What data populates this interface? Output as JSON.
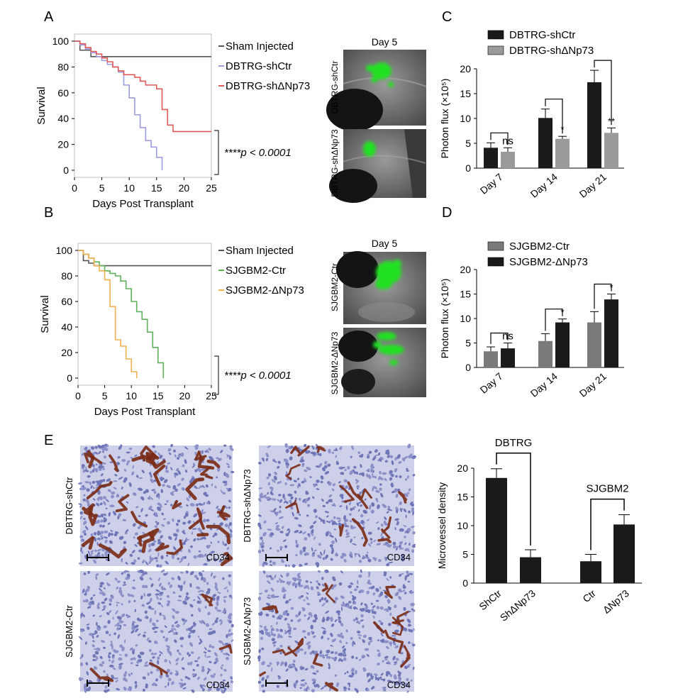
{
  "panel_labels": {
    "A": "A",
    "B": "B",
    "C": "C",
    "D": "D",
    "E": "E"
  },
  "colors": {
    "sham": "#555555",
    "blue": "#9c9ce0",
    "red": "#e05a5a",
    "green": "#5fb15b",
    "orange": "#f0b050",
    "black": "#1a1a1a",
    "grey": "#9a9a9a",
    "midgrey": "#7a7a7a",
    "gfp": "#22e022",
    "tissue": "#c8cde6",
    "stain": "#7a2a14",
    "nucleus": "#6f76b8"
  },
  "images": {
    "A": {
      "title": "Day 5",
      "row_labels": [
        "DBTRG-shCtr",
        "DBTRG-shΔNp73"
      ]
    },
    "B": {
      "title": "Day 5",
      "row_labels": [
        "SJGBM2-Ctr",
        "SJGBM2-ΔNp73"
      ]
    }
  },
  "histology": {
    "labels": [
      "DBTRG-shCtr",
      "DBTRG-shΔNp73",
      "SJGBM2-Ctr",
      "SJGBM2-ΔNp73"
    ],
    "stain_label": "CD34"
  },
  "chart_data": [
    {
      "id": "A",
      "type": "line",
      "xlabel": "Days Post Transplant",
      "ylabel": "Survival",
      "xlim": [
        0,
        25
      ],
      "ylim": [
        0,
        100
      ],
      "xticks": [
        0,
        5,
        10,
        15,
        20,
        25
      ],
      "yticks": [
        0,
        20,
        40,
        60,
        80,
        100
      ],
      "legend_position": "right",
      "annotation": "****p < 0.0001",
      "series": [
        {
          "name": "Sham Injected",
          "color": "#555555",
          "points": [
            [
              0,
              100
            ],
            [
              1,
              93
            ],
            [
              3,
              88
            ],
            [
              25,
              88
            ]
          ]
        },
        {
          "name": "DBTRG-shCtr",
          "color": "#9c9ce0",
          "points": [
            [
              0,
              100
            ],
            [
              1,
              97
            ],
            [
              2,
              94
            ],
            [
              3,
              91
            ],
            [
              4,
              88
            ],
            [
              5,
              85
            ],
            [
              6,
              82
            ],
            [
              7,
              80
            ],
            [
              8,
              76
            ],
            [
              9,
              66
            ],
            [
              10,
              56
            ],
            [
              11,
              43
            ],
            [
              12,
              33
            ],
            [
              13,
              23
            ],
            [
              14,
              18
            ],
            [
              15,
              10
            ],
            [
              16,
              0
            ]
          ]
        },
        {
          "name": "DBTRG-shΔNp73",
          "color": "#e05a5a",
          "points": [
            [
              0,
              100
            ],
            [
              1,
              98
            ],
            [
              2,
              95
            ],
            [
              3,
              92
            ],
            [
              4,
              90
            ],
            [
              5,
              87
            ],
            [
              6,
              84
            ],
            [
              7,
              80
            ],
            [
              8,
              77
            ],
            [
              9,
              74
            ],
            [
              11,
              72
            ],
            [
              12,
              69
            ],
            [
              13,
              66
            ],
            [
              15,
              63
            ],
            [
              16,
              47
            ],
            [
              17,
              35
            ],
            [
              18,
              30
            ],
            [
              25,
              30
            ]
          ]
        }
      ]
    },
    {
      "id": "B",
      "type": "line",
      "xlabel": "Days Post Transplant",
      "ylabel": "Survival",
      "xlim": [
        0,
        25
      ],
      "ylim": [
        0,
        100
      ],
      "xticks": [
        0,
        5,
        10,
        15,
        20,
        25
      ],
      "yticks": [
        0,
        20,
        40,
        60,
        80,
        100
      ],
      "legend_position": "right",
      "annotation": "****p < 0.0001",
      "series": [
        {
          "name": "Sham Injected",
          "color": "#555555",
          "points": [
            [
              0,
              100
            ],
            [
              1,
              92
            ],
            [
              2,
              90
            ],
            [
              3,
              88
            ],
            [
              25,
              88
            ]
          ]
        },
        {
          "name": "SJGBM2-Ctr",
          "color": "#5fb15b",
          "points": [
            [
              0,
              100
            ],
            [
              1,
              97
            ],
            [
              2,
              94
            ],
            [
              3,
              91
            ],
            [
              4,
              88
            ],
            [
              5,
              84
            ],
            [
              6,
              82
            ],
            [
              7,
              80
            ],
            [
              8,
              76
            ],
            [
              9,
              70
            ],
            [
              10,
              60
            ],
            [
              11,
              52
            ],
            [
              12,
              46
            ],
            [
              13,
              36
            ],
            [
              14,
              24
            ],
            [
              15,
              12
            ],
            [
              16,
              0
            ]
          ]
        },
        {
          "name": "SJGBM2-ΔNp73",
          "color": "#f0b050",
          "points": [
            [
              0,
              100
            ],
            [
              1,
              97
            ],
            [
              2,
              94
            ],
            [
              3,
              88
            ],
            [
              4,
              84
            ],
            [
              5,
              77
            ],
            [
              6,
              56
            ],
            [
              7,
              30
            ],
            [
              8,
              25
            ],
            [
              9,
              15
            ],
            [
              10,
              5
            ],
            [
              11,
              0
            ]
          ]
        }
      ]
    },
    {
      "id": "C",
      "type": "bar",
      "categories": [
        "Day 7",
        "Day 14",
        "Day 21"
      ],
      "ylabel": "Photon flux (×10⁵)",
      "ylim": [
        0,
        20
      ],
      "yticks": [
        0,
        5,
        10,
        15,
        20
      ],
      "legend_position": "top",
      "series": [
        {
          "name": "DBTRG-shCtr",
          "color": "#1a1a1a",
          "values": [
            4.1,
            10.1,
            17.3
          ],
          "errors": [
            1.0,
            1.8,
            2.4
          ]
        },
        {
          "name": "DBTRG-shΔNp73",
          "color": "#9a9a9a",
          "values": [
            3.3,
            5.9,
            7.1
          ],
          "errors": [
            0.8,
            0.5,
            1.0
          ]
        }
      ],
      "significance": [
        "ns",
        "*",
        "**"
      ]
    },
    {
      "id": "D",
      "type": "bar",
      "categories": [
        "Day 7",
        "Day 14",
        "Day 21"
      ],
      "ylabel": "Photon flux (×10⁵)",
      "ylim": [
        0,
        20
      ],
      "yticks": [
        0,
        5,
        10,
        15,
        20
      ],
      "legend_position": "top",
      "series": [
        {
          "name": "SJGBM2-Ctr",
          "color": "#7a7a7a",
          "values": [
            3.3,
            5.4,
            9.2
          ],
          "errors": [
            0.9,
            1.5,
            2.2
          ]
        },
        {
          "name": "SJGBM2-ΔNp73",
          "color": "#1a1a1a",
          "values": [
            3.9,
            9.2,
            13.9
          ],
          "errors": [
            1.1,
            0.7,
            1.1
          ]
        }
      ],
      "significance": [
        "ns",
        "*",
        "*"
      ]
    },
    {
      "id": "E",
      "type": "bar",
      "categories": [
        "ShCtr",
        "ShΔNp73",
        "Ctr",
        "ΔNp73"
      ],
      "ylabel": "Microvessel density",
      "ylim": [
        0,
        20
      ],
      "yticks": [
        0,
        5,
        10,
        15,
        20
      ],
      "values": [
        18.3,
        4.5,
        3.8,
        10.2
      ],
      "errors": [
        1.6,
        1.3,
        1.2,
        1.7
      ],
      "color": "#1a1a1a",
      "groups": [
        {
          "label": "DBTRG",
          "pair": [
            0,
            1
          ]
        },
        {
          "label": "SJGBM2",
          "pair": [
            2,
            3
          ]
        }
      ]
    }
  ]
}
